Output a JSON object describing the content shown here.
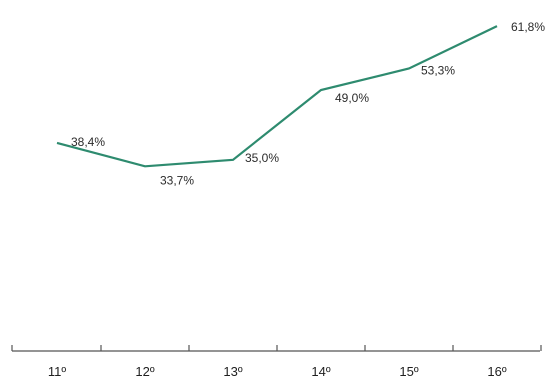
{
  "chart_data": {
    "type": "line",
    "categories": [
      "11º",
      "12º",
      "13º",
      "14º",
      "15º",
      "16º"
    ],
    "series": [
      {
        "values": [
          38.4,
          33.7,
          35.0,
          49.0,
          53.3,
          61.8
        ],
        "labels": [
          "38,4%",
          "33,7%",
          "35,0%",
          "49,0%",
          "53,3%",
          "61,8%"
        ],
        "color": "#2e8b6f"
      }
    ],
    "title": "",
    "xlabel": "",
    "ylabel": "",
    "ylim": [
      0,
      65
    ],
    "grid": false,
    "legend": "none"
  }
}
